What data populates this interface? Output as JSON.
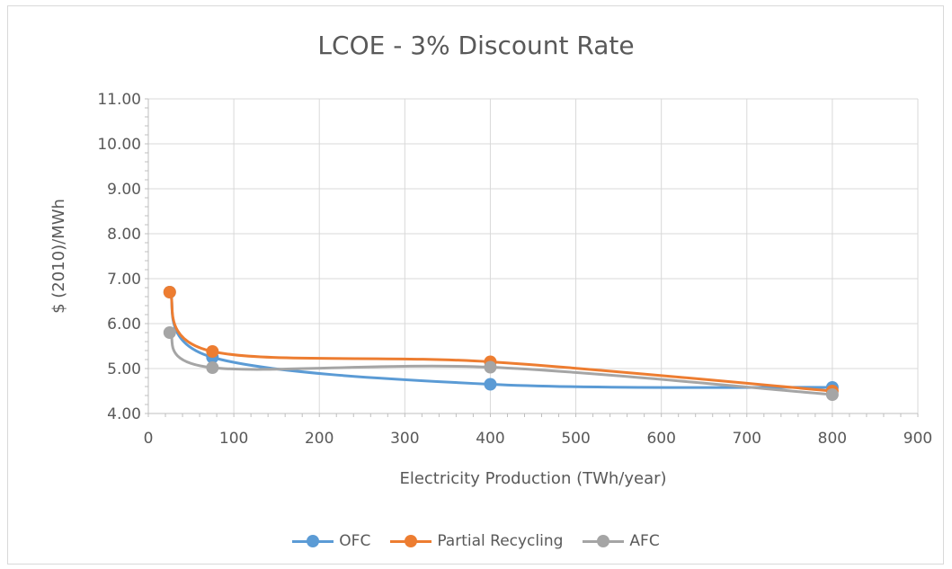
{
  "chart_data": {
    "type": "line",
    "title": "LCOE - 3% Discount Rate",
    "xlabel": "Electricity Production (TWh/year)",
    "ylabel": "$ (2010)/MWh",
    "xlim": [
      0,
      900
    ],
    "ylim": [
      4.0,
      11.0
    ],
    "x_ticks": [
      "0",
      "100",
      "200",
      "300",
      "400",
      "500",
      "600",
      "700",
      "800",
      "900"
    ],
    "y_ticks": [
      "4.00",
      "5.00",
      "6.00",
      "7.00",
      "8.00",
      "9.00",
      "10.00",
      "11.00"
    ],
    "grid": true,
    "smooth": true,
    "legend_position": "bottom",
    "series": [
      {
        "name": "OFC",
        "color": "#5b9bd5",
        "x": [
          25,
          75,
          400,
          800
        ],
        "y": [
          6.7,
          5.25,
          4.65,
          4.58
        ]
      },
      {
        "name": "Partial Recycling",
        "color": "#ed7d31",
        "x": [
          25,
          75,
          400,
          800
        ],
        "y": [
          6.7,
          5.38,
          5.15,
          4.5
        ]
      },
      {
        "name": "AFC",
        "color": "#a5a5a5",
        "x": [
          25,
          75,
          400,
          800
        ],
        "y": [
          5.8,
          5.02,
          5.03,
          4.42
        ]
      }
    ]
  }
}
